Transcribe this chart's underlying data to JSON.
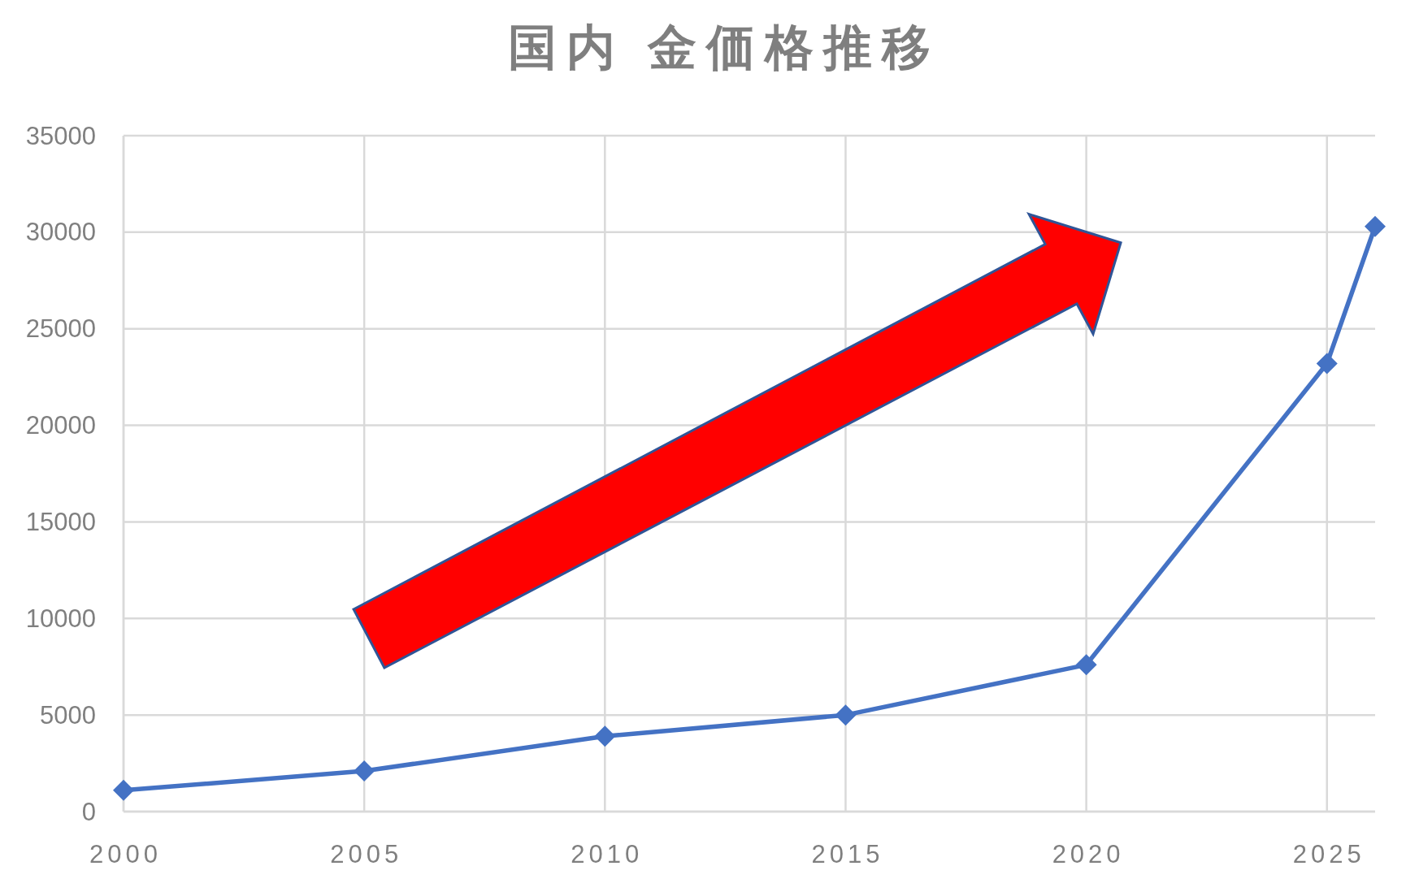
{
  "chart_data": {
    "type": "line",
    "title": "国内 金価格推移",
    "x": [
      2000,
      2005,
      2010,
      2015,
      2020,
      2025,
      2026
    ],
    "series": [
      {
        "color": "#4472c4",
        "values": [
          1100,
          2100,
          3900,
          5000,
          7600,
          23200,
          30300
        ]
      }
    ],
    "xlim": [
      2000,
      2026
    ],
    "xticks": [
      2000,
      2005,
      2010,
      2015,
      2020,
      2025
    ],
    "ylim": [
      0,
      35000
    ],
    "yticks": [
      0,
      5000,
      10000,
      15000,
      20000,
      25000,
      30000,
      35000
    ],
    "grid": true,
    "marker": "diamond",
    "line_style": "solid"
  }
}
